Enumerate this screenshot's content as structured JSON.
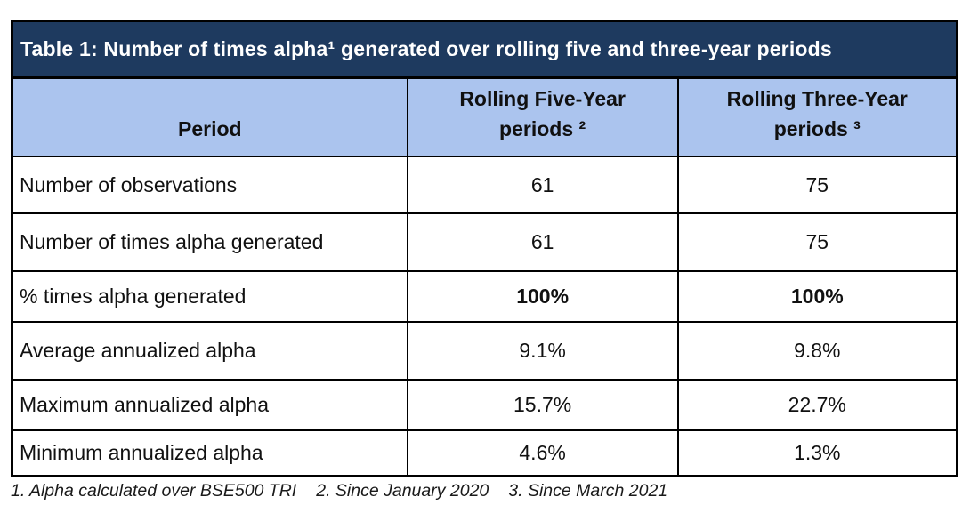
{
  "table": {
    "title": "Table 1: Number of times alpha¹ generated over rolling five and three-year periods",
    "columns": {
      "period": "Period",
      "five_year": "Rolling Five-Year\nperiods ²",
      "three_year": "Rolling Three-Year\nperiods ³"
    },
    "rows": [
      {
        "label": "Number of observations",
        "five_year": "61",
        "three_year": "75"
      },
      {
        "label": "Number of times alpha generated",
        "five_year": "61",
        "three_year": "75"
      },
      {
        "label": "% times alpha generated",
        "five_year": "100%",
        "three_year": "100%"
      },
      {
        "label": "Average annualized alpha",
        "five_year": "9.1%",
        "three_year": "9.8%"
      },
      {
        "label": "Maximum annualized alpha",
        "five_year": "15.7%",
        "three_year": "22.7%"
      },
      {
        "label": "Minimum annualized alpha",
        "five_year": "4.6%",
        "three_year": "1.3%"
      }
    ]
  },
  "footnotes": [
    "1. Alpha calculated over BSE500 TRI",
    "2. Since January 2020",
    "3. Since March 2021"
  ],
  "colors": {
    "title_bg": "#1e3a5f",
    "title_text": "#ffffff",
    "header_bg": "#abc4ee",
    "border": "#000000",
    "body_text": "#111111"
  }
}
